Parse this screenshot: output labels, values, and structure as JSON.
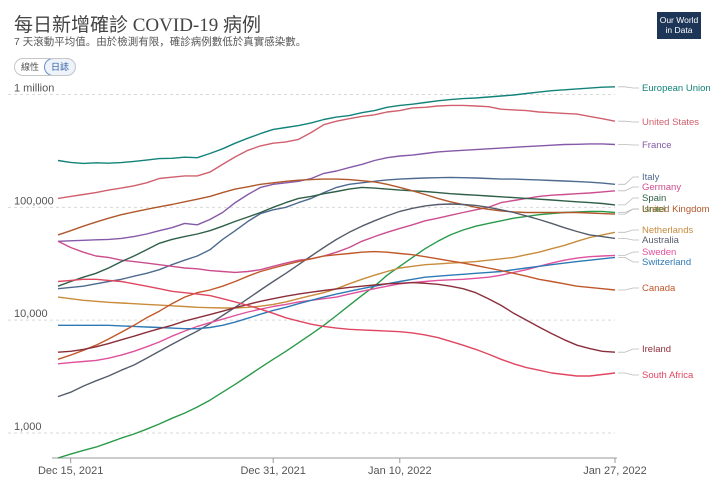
{
  "title": "每日新增確診 COVID-19 病例",
  "subtitle": "7 天滾動平均值。由於檢測有限，確診病例數低於真實感染數。",
  "toggle": {
    "linear": "線性",
    "log": "日誌"
  },
  "logo": {
    "line1": "Our World",
    "line2": "in Data"
  },
  "chart_data": {
    "type": "line",
    "scale": "log",
    "ylim": [
      600,
      1400000
    ],
    "yticks": [
      {
        "value": 1000,
        "label": "1,000"
      },
      {
        "value": 10000,
        "label": "10,000"
      },
      {
        "value": 100000,
        "label": "100,000"
      },
      {
        "value": 1000000,
        "label": "1 million"
      }
    ],
    "x": [
      "2021-12-14",
      "2021-12-15",
      "2021-12-16",
      "2021-12-17",
      "2021-12-18",
      "2021-12-19",
      "2021-12-20",
      "2021-12-21",
      "2021-12-22",
      "2021-12-23",
      "2021-12-24",
      "2021-12-25",
      "2021-12-26",
      "2021-12-27",
      "2021-12-28",
      "2021-12-29",
      "2021-12-30",
      "2021-12-31",
      "2022-01-01",
      "2022-01-02",
      "2022-01-03",
      "2022-01-04",
      "2022-01-05",
      "2022-01-06",
      "2022-01-07",
      "2022-01-08",
      "2022-01-09",
      "2022-01-10",
      "2022-01-11",
      "2022-01-12",
      "2022-01-13",
      "2022-01-14",
      "2022-01-15",
      "2022-01-16",
      "2022-01-17",
      "2022-01-18",
      "2022-01-19",
      "2022-01-20",
      "2022-01-21",
      "2022-01-22",
      "2022-01-23",
      "2022-01-24",
      "2022-01-25",
      "2022-01-26",
      "2022-01-27"
    ],
    "xticks": [
      {
        "index": 1,
        "label": "Dec 15, 2021"
      },
      {
        "index": 17,
        "label": "Dec 31, 2021"
      },
      {
        "index": 27,
        "label": "Jan 10, 2022"
      },
      {
        "index": 44,
        "label": "Jan 27, 2022"
      }
    ],
    "grid": true,
    "legend": "right",
    "series": [
      {
        "name": "European Union",
        "color": "#12837a",
        "labelY": 91,
        "values": [
          260000,
          250000,
          245000,
          248000,
          246000,
          249000,
          255000,
          262000,
          270000,
          272000,
          278000,
          275000,
          300000,
          330000,
          370000,
          410000,
          450000,
          490000,
          510000,
          530000,
          560000,
          600000,
          630000,
          650000,
          690000,
          720000,
          770000,
          800000,
          820000,
          850000,
          880000,
          900000,
          920000,
          930000,
          950000,
          970000,
          990000,
          1020000,
          1050000,
          1080000,
          1100000,
          1120000,
          1140000,
          1160000,
          1170000
        ]
      },
      {
        "name": "United States",
        "color": "#d0606d",
        "labelY": 125,
        "values": [
          120000,
          125000,
          130000,
          135000,
          142000,
          148000,
          155000,
          165000,
          180000,
          185000,
          190000,
          190000,
          205000,
          240000,
          280000,
          320000,
          350000,
          370000,
          380000,
          400000,
          460000,
          540000,
          580000,
          610000,
          640000,
          660000,
          700000,
          720000,
          760000,
          770000,
          790000,
          800000,
          800000,
          790000,
          780000,
          740000,
          730000,
          720000,
          700000,
          690000,
          680000,
          670000,
          640000,
          610000,
          580000
        ]
      },
      {
        "name": "France",
        "color": "#8559a8",
        "labelY": 148,
        "values": [
          50000,
          50500,
          51000,
          51500,
          52000,
          53000,
          55000,
          58000,
          62000,
          66000,
          72000,
          70000,
          78000,
          90000,
          110000,
          130000,
          150000,
          160000,
          165000,
          170000,
          180000,
          200000,
          210000,
          225000,
          240000,
          260000,
          275000,
          285000,
          290000,
          300000,
          310000,
          315000,
          320000,
          325000,
          330000,
          335000,
          340000,
          345000,
          350000,
          355000,
          360000,
          362000,
          365000,
          365000,
          360000
        ]
      },
      {
        "name": "Italy",
        "color": "#4e6b8f",
        "labelY": 180,
        "values": [
          19000,
          19500,
          20000,
          21000,
          22000,
          23000,
          24500,
          26000,
          28000,
          31000,
          34000,
          37000,
          42000,
          52000,
          62000,
          75000,
          88000,
          95000,
          100000,
          110000,
          120000,
          135000,
          150000,
          160000,
          165000,
          170000,
          175000,
          178000,
          180000,
          182000,
          183000,
          184000,
          183000,
          182000,
          180000,
          178000,
          178000,
          176000,
          175000,
          173000,
          171000,
          169000,
          167000,
          164000,
          160000
        ]
      },
      {
        "name": "Germany",
        "color": "#cc4d8e",
        "labelY": 190,
        "values": [
          50000,
          44000,
          40000,
          37000,
          36000,
          34000,
          33000,
          32000,
          31000,
          30000,
          29000,
          28500,
          27500,
          27000,
          26500,
          27000,
          28000,
          30000,
          32000,
          34000,
          35000,
          37000,
          40000,
          44000,
          50000,
          55000,
          60000,
          65000,
          70000,
          76000,
          80000,
          85000,
          90000,
          95000,
          100000,
          110000,
          115000,
          120000,
          125000,
          128000,
          130000,
          132000,
          134000,
          137000,
          140000
        ]
      },
      {
        "name": "Spain",
        "color": "#2f5f48",
        "labelY": 201,
        "values": [
          20000,
          22000,
          24000,
          26000,
          29000,
          33000,
          37000,
          42000,
          48000,
          52000,
          55000,
          58000,
          62000,
          68000,
          75000,
          82000,
          90000,
          100000,
          110000,
          120000,
          125000,
          132000,
          138000,
          145000,
          150000,
          148000,
          145000,
          142000,
          140000,
          138000,
          135000,
          132000,
          130000,
          128000,
          126000,
          124000,
          122000,
          120000,
          118000,
          116000,
          114000,
          112000,
          110000,
          108000,
          105000
        ]
      },
      {
        "name": "Israel",
        "color": "#2a9a4a",
        "labelY": 212,
        "values": [
          600,
          650,
          700,
          750,
          820,
          900,
          980,
          1080,
          1200,
          1350,
          1500,
          1700,
          1950,
          2300,
          2700,
          3200,
          3800,
          4500,
          5300,
          6300,
          7500,
          9000,
          11000,
          13500,
          16500,
          20000,
          25000,
          30000,
          36000,
          43000,
          50000,
          57000,
          63000,
          68000,
          72000,
          76000,
          80000,
          83000,
          86000,
          88000,
          90000,
          91000,
          92000,
          92000,
          90000
        ]
      },
      {
        "name": "United Kingdom",
        "color": "#b0582b",
        "labelY": 212,
        "values": [
          57000,
          62000,
          68000,
          74000,
          80000,
          86000,
          91000,
          96000,
          101000,
          106000,
          112000,
          118000,
          125000,
          135000,
          145000,
          152000,
          160000,
          165000,
          170000,
          174000,
          176000,
          178000,
          178000,
          176000,
          172000,
          168000,
          160000,
          150000,
          140000,
          130000,
          120000,
          112000,
          106000,
          100000,
          96000,
          93000,
          91000,
          90000,
          90000,
          90000,
          90000,
          90000,
          89000,
          88000,
          87000
        ]
      },
      {
        "name": "Netherlands",
        "color": "#c98b3c",
        "labelY": 233,
        "values": [
          16000,
          15500,
          15000,
          14700,
          14400,
          14200,
          14000,
          13800,
          13600,
          13400,
          13200,
          13000,
          12900,
          12800,
          12800,
          13000,
          13300,
          13800,
          14500,
          15500,
          16500,
          17500,
          19000,
          21000,
          23000,
          25000,
          27000,
          29000,
          30000,
          31000,
          31500,
          32000,
          32500,
          33000,
          34000,
          35000,
          36000,
          38000,
          40000,
          43000,
          46000,
          50000,
          54000,
          57000,
          60000
        ]
      },
      {
        "name": "Australia",
        "color": "#555c6b",
        "labelY": 243,
        "values": [
          2100,
          2300,
          2600,
          2900,
          3200,
          3600,
          4000,
          4600,
          5300,
          6100,
          7000,
          8000,
          9300,
          11000,
          13000,
          15500,
          18500,
          22000,
          26000,
          31000,
          37000,
          44000,
          52000,
          60000,
          68000,
          76000,
          84000,
          92000,
          98000,
          103000,
          106000,
          107000,
          106000,
          104000,
          100000,
          95000,
          90000,
          84000,
          78000,
          72000,
          66000,
          61000,
          57000,
          55000,
          53000
        ]
      },
      {
        "name": "Sweden",
        "color": "#e0509c",
        "labelY": 255,
        "values": [
          4100,
          4200,
          4300,
          4400,
          4600,
          4900,
          5300,
          5800,
          6400,
          7200,
          8000,
          8800,
          9500,
          10200,
          11000,
          11800,
          12500,
          13200,
          13800,
          14500,
          15000,
          15500,
          16000,
          17000,
          18000,
          19000,
          20000,
          21000,
          21500,
          22000,
          22500,
          22800,
          23000,
          23500,
          24000,
          25000,
          26500,
          28000,
          30000,
          32000,
          34000,
          35500,
          36500,
          37000,
          37500
        ]
      },
      {
        "name": "Switzerland",
        "color": "#2e79b5",
        "labelY": 265,
        "values": [
          9000,
          9000,
          9000,
          9000,
          9000,
          8900,
          8800,
          8700,
          8600,
          8500,
          8400,
          8400,
          8600,
          9000,
          9600,
          10400,
          11300,
          12200,
          13000,
          14000,
          15000,
          16000,
          17000,
          18000,
          19000,
          20000,
          21000,
          22000,
          23000,
          24000,
          24500,
          25000,
          25500,
          26000,
          26500,
          27000,
          28000,
          29000,
          30000,
          31000,
          32000,
          33000,
          34000,
          35000,
          36000
        ]
      },
      {
        "name": "Canada",
        "color": "#c0572a",
        "labelY": 291,
        "values": [
          4500,
          4900,
          5400,
          6000,
          6800,
          7800,
          9000,
          10500,
          12000,
          14000,
          16000,
          17500,
          18500,
          20000,
          22000,
          24500,
          27000,
          29000,
          31000,
          33000,
          35000,
          37000,
          38000,
          39000,
          40000,
          40500,
          40000,
          39000,
          38000,
          36500,
          35000,
          33500,
          32000,
          30500,
          29000,
          27500,
          26000,
          24500,
          23000,
          22000,
          21000,
          20000,
          19500,
          19000,
          18500
        ]
      },
      {
        "name": "Ireland",
        "color": "#8a2f3a",
        "labelY": 352,
        "values": [
          5200,
          5300,
          5500,
          5800,
          6200,
          6700,
          7200,
          7800,
          8400,
          9000,
          9800,
          10500,
          11200,
          12000,
          12900,
          13800,
          14700,
          15500,
          16300,
          17000,
          17700,
          18300,
          18900,
          19500,
          20000,
          20500,
          21000,
          21200,
          21500,
          21200,
          20800,
          20000,
          19000,
          17500,
          15500,
          13500,
          11500,
          10000,
          8700,
          7600,
          6700,
          6000,
          5600,
          5300,
          5200
        ]
      },
      {
        "name": "South Africa",
        "color": "#e04660",
        "labelY": 378,
        "values": [
          22000,
          22500,
          23000,
          23000,
          22500,
          22000,
          21000,
          20000,
          19000,
          18000,
          17500,
          17000,
          16500,
          15500,
          14500,
          13500,
          12500,
          11500,
          10500,
          9800,
          9200,
          8800,
          8500,
          8300,
          8200,
          8100,
          8000,
          7900,
          7700,
          7400,
          7000,
          6500,
          6000,
          5500,
          5000,
          4500,
          4100,
          3800,
          3600,
          3400,
          3300,
          3200,
          3200,
          3300,
          3400
        ]
      }
    ]
  }
}
